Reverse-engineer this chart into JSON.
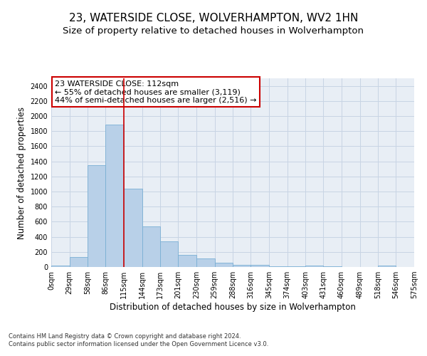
{
  "title": "23, WATERSIDE CLOSE, WOLVERHAMPTON, WV2 1HN",
  "subtitle": "Size of property relative to detached houses in Wolverhampton",
  "xlabel": "Distribution of detached houses by size in Wolverhampton",
  "ylabel": "Number of detached properties",
  "footer_line1": "Contains HM Land Registry data © Crown copyright and database right 2024.",
  "footer_line2": "Contains public sector information licensed under the Open Government Licence v3.0.",
  "bar_values": [
    15,
    130,
    1350,
    1890,
    1040,
    540,
    335,
    165,
    110,
    55,
    30,
    25,
    5,
    5,
    15,
    5,
    0,
    0,
    15
  ],
  "bin_edges": [
    0,
    29,
    58,
    86,
    115,
    144,
    173,
    201,
    230,
    259,
    288,
    316,
    345,
    374,
    403,
    431,
    460,
    489,
    518,
    546
  ],
  "tick_labels": [
    "0sqm",
    "29sqm",
    "58sqm",
    "86sqm",
    "115sqm",
    "144sqm",
    "173sqm",
    "201sqm",
    "230sqm",
    "259sqm",
    "288sqm",
    "316sqm",
    "345sqm",
    "374sqm",
    "403sqm",
    "431sqm",
    "460sqm",
    "489sqm",
    "518sqm",
    "546sqm",
    "575sqm"
  ],
  "bar_color": "#b8d0e8",
  "bar_edge_color": "#7aafd4",
  "vline_x": 115,
  "vline_color": "#cc0000",
  "ylim": [
    0,
    2500
  ],
  "yticks": [
    0,
    200,
    400,
    600,
    800,
    1000,
    1200,
    1400,
    1600,
    1800,
    2000,
    2200,
    2400
  ],
  "annotation_text": "23 WATERSIDE CLOSE: 112sqm\n← 55% of detached houses are smaller (3,119)\n44% of semi-detached houses are larger (2,516) →",
  "annotation_box_color": "#ffffff",
  "annotation_box_edge": "#cc0000",
  "background_color": "#ffffff",
  "plot_bg_color": "#e8eef5",
  "grid_color": "#c8d4e4",
  "title_fontsize": 11,
  "subtitle_fontsize": 9.5,
  "axis_label_fontsize": 8.5,
  "tick_fontsize": 7,
  "annotation_fontsize": 8
}
